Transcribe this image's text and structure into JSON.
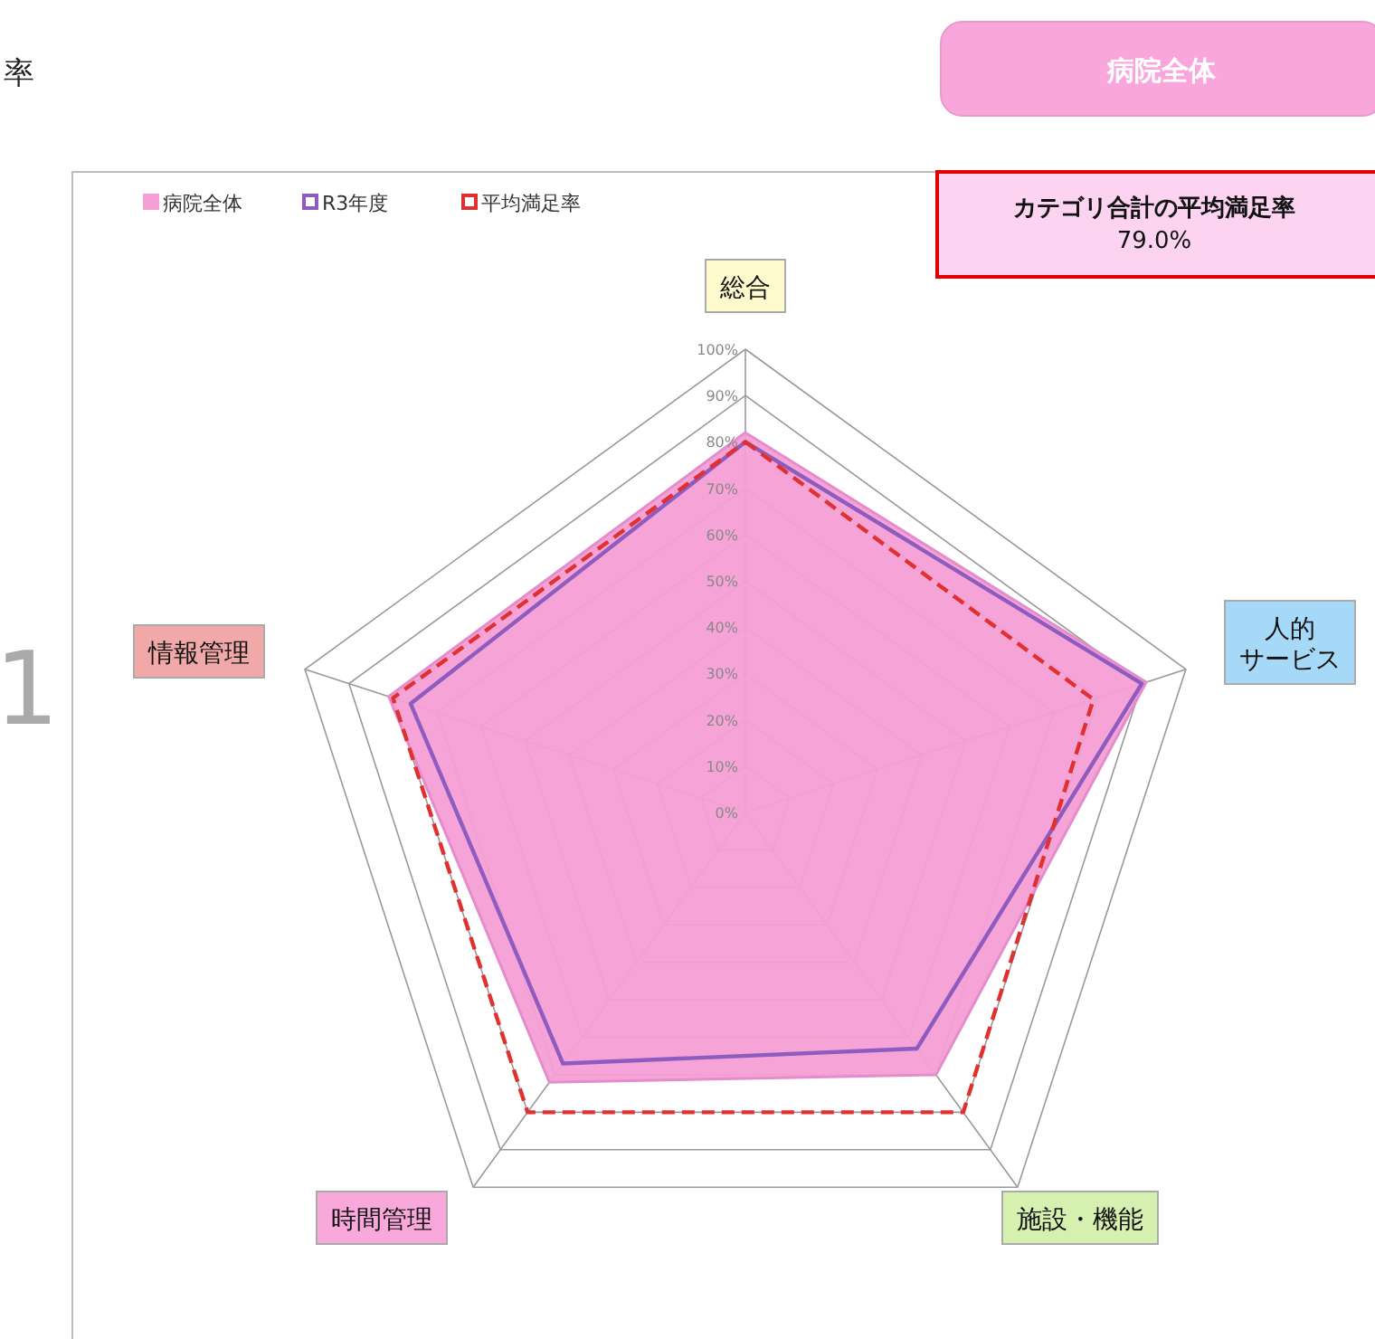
{
  "chart_data": {
    "type": "radar",
    "title": "率",
    "categories": [
      "総合",
      "人的サービス",
      "施設・機能",
      "時間管理",
      "情報管理"
    ],
    "series": [
      {
        "name": "病院全体",
        "color": "#f59fd6",
        "values": [
          82,
          91,
          70,
          72,
          81
        ]
      },
      {
        "name": "R3年度",
        "color": "#8e5bbf",
        "values": [
          80,
          90,
          63,
          67,
          76
        ]
      },
      {
        "name": "平均満足率",
        "color": "#e03030",
        "line_style": "dashed",
        "values": [
          80,
          79,
          80,
          80,
          80
        ]
      }
    ],
    "ylim": [
      0,
      100
    ],
    "yticks": [
      {
        "value": 0,
        "label": "0%"
      },
      {
        "value": 10,
        "label": "10%"
      },
      {
        "value": 20,
        "label": "20%"
      },
      {
        "value": 30,
        "label": "30%"
      },
      {
        "value": 40,
        "label": "40%"
      },
      {
        "value": 50,
        "label": "50%"
      },
      {
        "value": 60,
        "label": "60%"
      },
      {
        "value": 70,
        "label": "70%"
      },
      {
        "value": 80,
        "label": "80%"
      },
      {
        "value": 90,
        "label": "90%"
      },
      {
        "value": 100,
        "label": "100%"
      }
    ],
    "grid": true,
    "legend": "top left",
    "annotations": [
      "病院全体",
      "カテゴリ合計の平均満足率\n79.0%",
      "1"
    ]
  }
}
